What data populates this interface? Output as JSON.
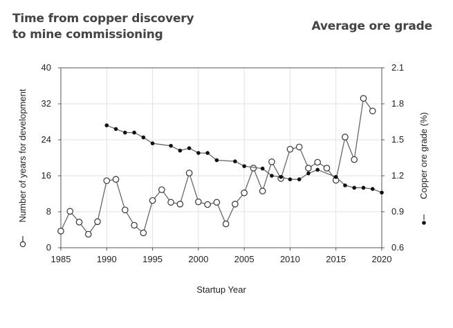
{
  "titles": {
    "left_line1": "Time from copper discovery",
    "left_line2": "to mine commissioning",
    "right": "Average ore grade"
  },
  "chart_data": {
    "type": "line",
    "xlabel": "Startup Year",
    "ylabel_left": "Number of years for development",
    "ylabel_right": "Copper ore grade (%)",
    "xlim": [
      1985,
      2020
    ],
    "x_ticks": [
      1985,
      1990,
      1995,
      2000,
      2005,
      2010,
      2015,
      2020
    ],
    "ylim_left": [
      0,
      40
    ],
    "y_ticks_left": [
      0,
      8,
      16,
      24,
      32,
      40
    ],
    "ylim_right": [
      0.6,
      2.1
    ],
    "y_ticks_right": [
      "0.6",
      "0.9",
      "1.2",
      "1.5",
      "1.8",
      "2.1"
    ],
    "grid": true,
    "series": [
      {
        "name": "Number of years for development",
        "axis": "left",
        "marker": "open-circle",
        "points": [
          [
            1985,
            3.7
          ],
          [
            1986,
            8.1
          ],
          [
            1987,
            5.7
          ],
          [
            1988,
            3.0
          ],
          [
            1989,
            5.8
          ],
          [
            1990,
            14.9
          ],
          [
            1991,
            15.2
          ],
          [
            1992,
            8.4
          ],
          [
            1993,
            5.0
          ],
          [
            1994,
            3.3
          ],
          [
            1995,
            10.5
          ],
          [
            1996,
            12.9
          ],
          [
            1997,
            10.1
          ],
          [
            1998,
            9.7
          ],
          [
            1999,
            16.6
          ],
          [
            2000,
            10.2
          ],
          [
            2001,
            9.6
          ],
          [
            2002,
            10.1
          ],
          [
            2003,
            5.3
          ],
          [
            2004,
            9.7
          ],
          [
            2005,
            12.2
          ],
          [
            2006,
            17.7
          ],
          [
            2007,
            12.6
          ],
          [
            2008,
            19.1
          ],
          [
            2009,
            15.4
          ],
          [
            2010,
            21.9
          ],
          [
            2011,
            22.4
          ],
          [
            2012,
            17.7
          ],
          [
            2013,
            19.0
          ],
          [
            2014,
            17.7
          ],
          [
            2015,
            15.0
          ],
          [
            2016,
            24.6
          ],
          [
            2017,
            19.6
          ],
          [
            2018,
            33.2
          ],
          [
            2019,
            30.4
          ]
        ]
      },
      {
        "name": "Copper ore grade (%)",
        "axis": "right",
        "marker": "filled-circle",
        "points": [
          [
            1990,
            1.62
          ],
          [
            1991,
            1.59
          ],
          [
            1992,
            1.56
          ],
          [
            1993,
            1.56
          ],
          [
            1994,
            1.52
          ],
          [
            1995,
            1.47
          ],
          [
            1997,
            1.45
          ],
          [
            1998,
            1.41
          ],
          [
            1999,
            1.43
          ],
          [
            2000,
            1.39
          ],
          [
            2001,
            1.39
          ],
          [
            2002,
            1.33
          ],
          [
            2004,
            1.32
          ],
          [
            2005,
            1.28
          ],
          [
            2007,
            1.26
          ],
          [
            2008,
            1.2
          ],
          [
            2009,
            1.19
          ],
          [
            2010,
            1.17
          ],
          [
            2011,
            1.17
          ],
          [
            2012,
            1.22
          ],
          [
            2013,
            1.25
          ],
          [
            2015,
            1.19
          ],
          [
            2016,
            1.12
          ],
          [
            2017,
            1.1
          ],
          [
            2018,
            1.1
          ],
          [
            2019,
            1.09
          ],
          [
            2020,
            1.06
          ]
        ]
      }
    ]
  }
}
